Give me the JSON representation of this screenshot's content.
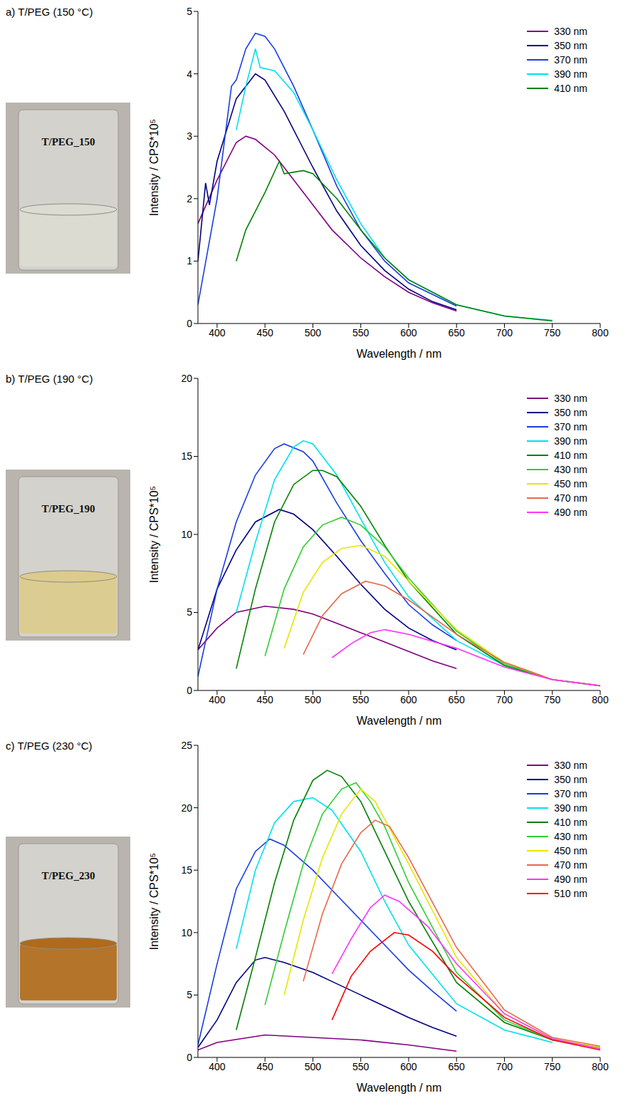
{
  "chart_data": [
    {
      "type": "line",
      "title": "a) T/PEG (150 °C)",
      "annotation": "T/PEG_150",
      "x_label": "Wavelength / nm",
      "y_label": "Intensity / CPS*10⁵",
      "xlim": [
        380,
        800
      ],
      "xticks": [
        400,
        450,
        500,
        550,
        600,
        650,
        700,
        750,
        800
      ],
      "ylim": [
        0,
        5
      ],
      "yticks": [
        0,
        1,
        2,
        3,
        4,
        5
      ],
      "grid": false,
      "legend": "upper right",
      "series": [
        {
          "name": "330 nm",
          "color": "#800080",
          "x": [
            380,
            400,
            420,
            430,
            440,
            460,
            480,
            500,
            520,
            550,
            575,
            600,
            625,
            650
          ],
          "values": [
            1.6,
            2.3,
            2.9,
            3.0,
            2.95,
            2.7,
            2.3,
            1.9,
            1.5,
            1.05,
            0.75,
            0.5,
            0.33,
            0.2
          ]
        },
        {
          "name": "350 nm",
          "color": "#000080",
          "x": [
            380,
            388,
            392,
            400,
            420,
            440,
            450,
            470,
            500,
            525,
            550,
            575,
            600,
            625,
            650
          ],
          "values": [
            1.0,
            2.25,
            1.9,
            2.6,
            3.6,
            4.0,
            3.9,
            3.4,
            2.5,
            1.8,
            1.25,
            0.85,
            0.55,
            0.35,
            0.22
          ]
        },
        {
          "name": "370 nm",
          "color": "#1a3de0",
          "x": [
            380,
            400,
            415,
            420,
            430,
            440,
            450,
            460,
            480,
            500,
            525,
            550,
            575,
            600,
            650
          ],
          "values": [
            0.3,
            2.0,
            3.8,
            3.9,
            4.4,
            4.65,
            4.6,
            4.4,
            3.8,
            3.1,
            2.2,
            1.5,
            1.0,
            0.65,
            0.28
          ]
        },
        {
          "name": "390 nm",
          "color": "#00e0f0",
          "x": [
            420,
            430,
            440,
            445,
            460,
            480,
            500,
            525,
            550,
            575,
            600,
            650,
            700,
            750
          ],
          "values": [
            3.1,
            3.8,
            4.4,
            4.1,
            4.05,
            3.7,
            3.1,
            2.3,
            1.6,
            1.05,
            0.7,
            0.3,
            0.12,
            0.05
          ]
        },
        {
          "name": "410 nm",
          "color": "#008000",
          "x": [
            420,
            430,
            450,
            465,
            470,
            490,
            500,
            525,
            550,
            575,
            600,
            650,
            700,
            750
          ],
          "values": [
            1.0,
            1.5,
            2.1,
            2.6,
            2.4,
            2.45,
            2.4,
            2.0,
            1.5,
            1.05,
            0.7,
            0.3,
            0.12,
            0.04
          ]
        }
      ]
    },
    {
      "type": "line",
      "title": "b) T/PEG (190 °C)",
      "annotation": "T/PEG_190",
      "x_label": "Wavelength / nm",
      "y_label": "Intensity / CPS*10⁵",
      "xlim": [
        380,
        800
      ],
      "xticks": [
        400,
        450,
        500,
        550,
        600,
        650,
        700,
        750,
        800
      ],
      "ylim": [
        0,
        20
      ],
      "yticks": [
        0,
        5,
        10,
        15,
        20
      ],
      "grid": false,
      "legend": "upper right",
      "series": [
        {
          "name": "330 nm",
          "color": "#800080",
          "x": [
            380,
            400,
            420,
            450,
            480,
            500,
            525,
            550,
            575,
            600,
            625,
            650
          ],
          "values": [
            2.6,
            4.0,
            5.0,
            5.4,
            5.2,
            4.9,
            4.3,
            3.7,
            3.1,
            2.5,
            1.9,
            1.4
          ]
        },
        {
          "name": "350 nm",
          "color": "#000080",
          "x": [
            380,
            400,
            420,
            440,
            465,
            480,
            500,
            525,
            550,
            575,
            600,
            625,
            650
          ],
          "values": [
            2.6,
            6.5,
            9.0,
            10.8,
            11.6,
            11.3,
            10.3,
            8.6,
            6.8,
            5.2,
            4.0,
            3.2,
            2.6
          ]
        },
        {
          "name": "370 nm",
          "color": "#1a3de0",
          "x": [
            380,
            400,
            420,
            440,
            460,
            470,
            490,
            500,
            525,
            550,
            575,
            600,
            625,
            650
          ],
          "values": [
            0.9,
            6.5,
            10.8,
            13.8,
            15.5,
            15.8,
            15.3,
            14.7,
            12.0,
            9.6,
            7.5,
            5.5,
            4.2,
            3.2
          ]
        },
        {
          "name": "390 nm",
          "color": "#00e0f0",
          "x": [
            420,
            440,
            460,
            480,
            490,
            500,
            525,
            550,
            575,
            600,
            650,
            700,
            750,
            800
          ],
          "values": [
            5.0,
            9.5,
            13.5,
            15.6,
            16.0,
            15.8,
            13.8,
            11.0,
            8.2,
            6.0,
            3.2,
            1.6,
            0.7,
            0.3
          ]
        },
        {
          "name": "410 nm",
          "color": "#008000",
          "x": [
            420,
            440,
            460,
            480,
            500,
            510,
            525,
            550,
            575,
            600,
            650,
            700,
            750,
            800
          ],
          "values": [
            1.4,
            6.5,
            10.8,
            13.2,
            14.1,
            14.1,
            13.7,
            11.8,
            9.3,
            7.0,
            3.6,
            1.6,
            0.7,
            0.3
          ]
        },
        {
          "name": "430 nm",
          "color": "#33cc33",
          "x": [
            450,
            470,
            490,
            510,
            530,
            550,
            575,
            600,
            650,
            700,
            750,
            800
          ],
          "values": [
            2.2,
            6.5,
            9.2,
            10.6,
            11.1,
            10.6,
            9.2,
            7.2,
            3.8,
            1.7,
            0.7,
            0.3
          ]
        },
        {
          "name": "450 nm",
          "color": "#e6e600",
          "x": [
            470,
            490,
            510,
            530,
            550,
            575,
            600,
            650,
            700,
            750,
            800
          ],
          "values": [
            2.7,
            6.3,
            8.2,
            9.1,
            9.3,
            8.6,
            7.0,
            3.9,
            1.8,
            0.7,
            0.3
          ]
        },
        {
          "name": "470 nm",
          "color": "#e8684a",
          "x": [
            490,
            510,
            530,
            555,
            575,
            600,
            650,
            700,
            750,
            800
          ],
          "values": [
            2.3,
            4.8,
            6.2,
            7.0,
            6.7,
            5.8,
            3.6,
            1.8,
            0.7,
            0.3
          ]
        },
        {
          "name": "490 nm",
          "color": "#ff33ff",
          "x": [
            520,
            540,
            560,
            575,
            600,
            650,
            700,
            750,
            800
          ],
          "values": [
            2.1,
            3.0,
            3.7,
            3.9,
            3.6,
            2.7,
            1.5,
            0.7,
            0.3
          ]
        }
      ]
    },
    {
      "type": "line",
      "title": "c) T/PEG (230 °C)",
      "annotation": "T/PEG_230",
      "x_label": "Wavelength / nm",
      "y_label": "Intensity / CPS*10⁵",
      "xlim": [
        380,
        800
      ],
      "xticks": [
        400,
        450,
        500,
        550,
        600,
        650,
        700,
        750,
        800
      ],
      "ylim": [
        0,
        25
      ],
      "yticks": [
        0,
        5,
        10,
        15,
        20,
        25
      ],
      "grid": false,
      "legend": "upper right",
      "series": [
        {
          "name": "330 nm",
          "color": "#800080",
          "x": [
            380,
            400,
            450,
            500,
            550,
            600,
            650
          ],
          "values": [
            0.6,
            1.2,
            1.8,
            1.6,
            1.4,
            1.0,
            0.5
          ]
        },
        {
          "name": "350 nm",
          "color": "#000080",
          "x": [
            380,
            400,
            420,
            440,
            450,
            470,
            500,
            525,
            550,
            575,
            600,
            625,
            650
          ],
          "values": [
            0.8,
            3.0,
            6.0,
            7.8,
            8.0,
            7.6,
            6.8,
            5.9,
            5.0,
            4.1,
            3.2,
            2.4,
            1.7
          ]
        },
        {
          "name": "370 nm",
          "color": "#1a3de0",
          "x": [
            380,
            400,
            420,
            440,
            455,
            470,
            500,
            525,
            550,
            575,
            600,
            625,
            650
          ],
          "values": [
            1.0,
            7.5,
            13.5,
            16.5,
            17.5,
            17.0,
            15.0,
            13.0,
            11.0,
            9.0,
            7.0,
            5.3,
            3.7
          ]
        },
        {
          "name": "390 nm",
          "color": "#00e0f0",
          "x": [
            420,
            440,
            460,
            480,
            500,
            520,
            550,
            575,
            600,
            650,
            700,
            750
          ],
          "values": [
            8.7,
            15.0,
            18.8,
            20.5,
            20.8,
            19.8,
            16.5,
            12.5,
            9.0,
            4.3,
            2.2,
            1.2
          ]
        },
        {
          "name": "410 nm",
          "color": "#008000",
          "x": [
            420,
            440,
            460,
            480,
            500,
            515,
            530,
            550,
            575,
            600,
            650,
            700,
            750,
            800
          ],
          "values": [
            2.2,
            8.0,
            14.0,
            19.0,
            22.2,
            23.0,
            22.5,
            20.5,
            16.5,
            12.5,
            6.0,
            2.8,
            1.4,
            0.8
          ]
        },
        {
          "name": "430 nm",
          "color": "#33cc33",
          "x": [
            450,
            470,
            490,
            510,
            530,
            545,
            560,
            575,
            600,
            650,
            700,
            750,
            800
          ],
          "values": [
            4.2,
            10.0,
            15.5,
            19.5,
            21.5,
            22.0,
            20.5,
            18.5,
            14.0,
            6.8,
            3.0,
            1.4,
            0.8
          ]
        },
        {
          "name": "450 nm",
          "color": "#e6e600",
          "x": [
            470,
            490,
            510,
            530,
            550,
            565,
            600,
            650,
            700,
            750,
            800
          ],
          "values": [
            5.0,
            11.0,
            16.0,
            19.5,
            21.5,
            20.5,
            15.5,
            8.0,
            3.5,
            1.5,
            0.8
          ]
        },
        {
          "name": "470 nm",
          "color": "#e8684a",
          "x": [
            490,
            510,
            530,
            550,
            565,
            580,
            600,
            650,
            700,
            750,
            800
          ],
          "values": [
            6.1,
            11.5,
            15.5,
            18.0,
            19.0,
            18.5,
            16.0,
            8.8,
            3.8,
            1.6,
            0.9
          ]
        },
        {
          "name": "490 nm",
          "color": "#ff33ff",
          "x": [
            520,
            540,
            560,
            575,
            590,
            620,
            650,
            700,
            750,
            800
          ],
          "values": [
            6.7,
            9.5,
            12.0,
            13.0,
            12.5,
            10.5,
            7.5,
            3.5,
            1.5,
            0.7
          ]
        },
        {
          "name": "510 nm",
          "color": "#ff0000",
          "x": [
            520,
            540,
            560,
            585,
            600,
            625,
            650,
            700,
            750,
            800
          ],
          "values": [
            3.0,
            6.5,
            8.5,
            10.0,
            9.8,
            8.5,
            6.5,
            3.2,
            1.4,
            0.6
          ]
        }
      ]
    }
  ]
}
